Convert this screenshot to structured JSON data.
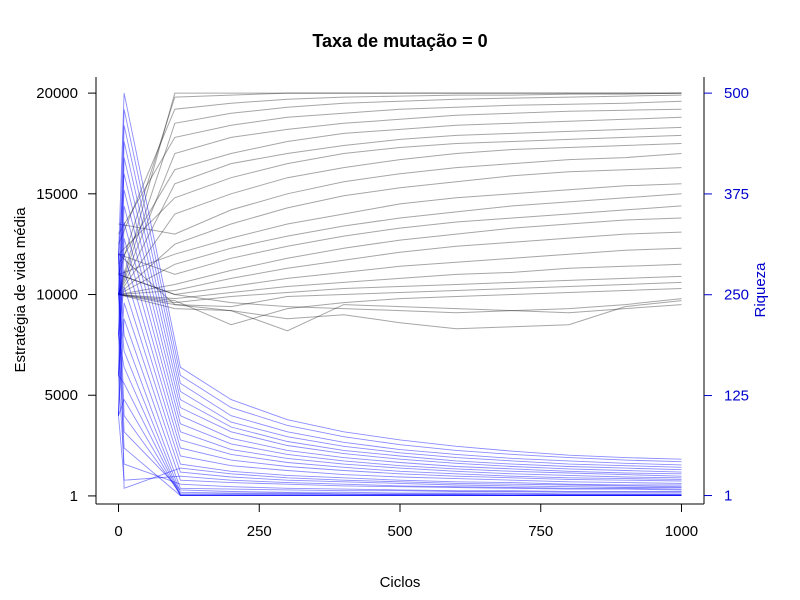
{
  "chart_data": {
    "type": "line",
    "title": "Taxa de mutação = 0",
    "xlabel": "Ciclos",
    "ylabel": "Estratégia de vida média",
    "y2label": "Riqueza",
    "xlim": [
      -40,
      1040
    ],
    "ylim": [
      -400,
      20800
    ],
    "y2lim": [
      -9.5,
      520
    ],
    "x_ticks": [
      0,
      250,
      500,
      750,
      1000
    ],
    "y_ticks": [
      1,
      5000,
      10000,
      15000,
      20000
    ],
    "y2_ticks": [
      1,
      125,
      250,
      375,
      500
    ],
    "colors": {
      "strategy_series": "#000000",
      "wealth_series": "#0000ff",
      "right_axis": "#0000cc"
    },
    "series_groups": [
      {
        "group": "strategy",
        "axis": "left",
        "color": "#000000",
        "x": [
          0,
          100,
          200,
          300,
          400,
          500,
          600,
          700,
          800,
          900,
          1000
        ],
        "lines": [
          [
            10000,
            20000,
            20000,
            20000,
            20000,
            20000,
            20000,
            20000,
            20000,
            20000,
            20000
          ],
          [
            11000,
            19800,
            19900,
            20000,
            20000,
            20000,
            20000,
            20000,
            20000,
            20000,
            20000
          ],
          [
            12500,
            19200,
            19500,
            19700,
            19800,
            19850,
            19900,
            19900,
            19950,
            19950,
            20000
          ],
          [
            10000,
            18500,
            19000,
            19300,
            19500,
            19600,
            19700,
            19750,
            19800,
            19850,
            19900
          ],
          [
            13000,
            17800,
            18400,
            18800,
            19000,
            19200,
            19300,
            19400,
            19450,
            19500,
            19600
          ],
          [
            10000,
            17000,
            17800,
            18200,
            18500,
            18700,
            18900,
            19000,
            19100,
            19150,
            19200
          ],
          [
            11500,
            16200,
            17000,
            17600,
            18000,
            18200,
            18400,
            18500,
            18600,
            18700,
            18800
          ],
          [
            10000,
            15500,
            16500,
            17000,
            17400,
            17700,
            17900,
            18000,
            18100,
            18200,
            18300
          ],
          [
            12000,
            14800,
            15800,
            16500,
            17000,
            17300,
            17500,
            17600,
            17700,
            17800,
            17900
          ],
          [
            10000,
            14000,
            15000,
            15800,
            16300,
            16700,
            17000,
            17200,
            17300,
            17400,
            17500
          ],
          [
            13500,
            13000,
            14200,
            15000,
            15600,
            16000,
            16300,
            16500,
            16700,
            16800,
            17000
          ],
          [
            10000,
            12500,
            13500,
            14300,
            14900,
            15300,
            15600,
            15900,
            16100,
            16200,
            16300
          ],
          [
            11000,
            12000,
            12800,
            13500,
            14000,
            14500,
            14800,
            15000,
            15200,
            15400,
            15500
          ],
          [
            10000,
            11500,
            12300,
            12900,
            13400,
            13800,
            14100,
            14400,
            14600,
            14800,
            15000
          ],
          [
            12000,
            11000,
            11800,
            12400,
            12900,
            13300,
            13600,
            13800,
            14000,
            14200,
            14400
          ],
          [
            10000,
            10500,
            11200,
            11800,
            12300,
            12700,
            13000,
            13300,
            13500,
            13700,
            13800
          ],
          [
            10000,
            10200,
            10800,
            11300,
            11700,
            12100,
            12400,
            12600,
            12800,
            13000,
            13100
          ],
          [
            11000,
            10000,
            10400,
            10800,
            11100,
            11400,
            11600,
            11800,
            12000,
            12200,
            12300
          ],
          [
            10000,
            9800,
            10100,
            10400,
            10600,
            10800,
            11000,
            11100,
            11300,
            11400,
            11500
          ],
          [
            10000,
            9600,
            9900,
            10100,
            10300,
            10400,
            10500,
            10600,
            10700,
            10800,
            10900
          ],
          [
            12000,
            9500,
            9400,
            9900,
            10000,
            10100,
            10200,
            10300,
            10400,
            10500,
            10600
          ],
          [
            10000,
            9700,
            8500,
            9300,
            9600,
            9800,
            9900,
            10000,
            10100,
            10200,
            10300
          ],
          [
            10000,
            9500,
            9200,
            8800,
            9000,
            8600,
            8300,
            8400,
            8500,
            9400,
            9700
          ],
          [
            11000,
            10000,
            9600,
            9400,
            9300,
            9200,
            9100,
            9200,
            9300,
            9500,
            9800
          ],
          [
            10000,
            9300,
            9200,
            8200,
            9500,
            9400,
            9300,
            9200,
            9100,
            9300,
            9500
          ]
        ]
      },
      {
        "group": "wealth",
        "axis": "right",
        "color": "#0000ff",
        "x": [
          0,
          10,
          110,
          200,
          300,
          400,
          500,
          600,
          700,
          800,
          900,
          1000
        ],
        "lines": [
          [
            300,
            500,
            160,
            120,
            95,
            80,
            70,
            62,
            56,
            51,
            48,
            46
          ],
          [
            250,
            480,
            150,
            110,
            88,
            74,
            64,
            57,
            52,
            48,
            45,
            43
          ],
          [
            200,
            460,
            140,
            100,
            80,
            67,
            58,
            52,
            47,
            44,
            41,
            39
          ],
          [
            150,
            440,
            130,
            92,
            74,
            62,
            54,
            48,
            44,
            40,
            38,
            36
          ],
          [
            100,
            420,
            120,
            86,
            68,
            57,
            50,
            44,
            40,
            37,
            35,
            33
          ],
          [
            300,
            400,
            110,
            80,
            63,
            53,
            46,
            41,
            37,
            34,
            32,
            30
          ],
          [
            250,
            380,
            100,
            72,
            57,
            48,
            42,
            37,
            34,
            31,
            29,
            28
          ],
          [
            200,
            360,
            90,
            65,
            52,
            44,
            38,
            34,
            31,
            29,
            27,
            25
          ],
          [
            150,
            340,
            80,
            58,
            47,
            40,
            35,
            31,
            28,
            26,
            24,
            23
          ],
          [
            100,
            320,
            70,
            52,
            42,
            36,
            31,
            28,
            25,
            23,
            22,
            21
          ],
          [
            300,
            300,
            60,
            45,
            37,
            32,
            28,
            25,
            23,
            21,
            20,
            19
          ],
          [
            250,
            280,
            50,
            38,
            32,
            27,
            24,
            22,
            20,
            18,
            17,
            16
          ],
          [
            200,
            260,
            40,
            31,
            26,
            23,
            20,
            18,
            17,
            15,
            14,
            14
          ],
          [
            150,
            240,
            30,
            24,
            20,
            18,
            16,
            14,
            13,
            12,
            11,
            11
          ],
          [
            100,
            220,
            20,
            17,
            15,
            13,
            12,
            11,
            10,
            9,
            9,
            8
          ],
          [
            300,
            200,
            10,
            9,
            8,
            7,
            7,
            6,
            6,
            5,
            5,
            5
          ],
          [
            250,
            180,
            5,
            4,
            4,
            3,
            3,
            3,
            3,
            2,
            2,
            2
          ],
          [
            200,
            160,
            2,
            2,
            2,
            2,
            2,
            2,
            1,
            1,
            1,
            1
          ],
          [
            150,
            140,
            1,
            1,
            1,
            1,
            1,
            1,
            1,
            1,
            1,
            1
          ],
          [
            100,
            120,
            1,
            1,
            1,
            1,
            1,
            1,
            1,
            1,
            1,
            1
          ],
          [
            300,
            100,
            3,
            3,
            3,
            3,
            2,
            2,
            2,
            2,
            2,
            2
          ],
          [
            250,
            80,
            8,
            6,
            5,
            5,
            4,
            4,
            4,
            3,
            3,
            3
          ],
          [
            200,
            60,
            1,
            1,
            1,
            1,
            1,
            1,
            1,
            1,
            1,
            1
          ],
          [
            150,
            40,
            15,
            12,
            10,
            9,
            8,
            7,
            7,
            6,
            6,
            6
          ],
          [
            100,
            20,
            25,
            20,
            17,
            15,
            13,
            12,
            11,
            10,
            10,
            9
          ],
          [
            300,
            10,
            35,
            28,
            23,
            20,
            18,
            16,
            15,
            14,
            13,
            12
          ]
        ]
      }
    ]
  }
}
